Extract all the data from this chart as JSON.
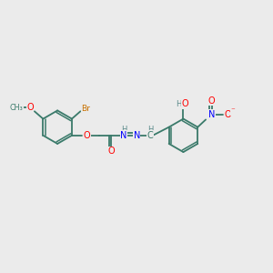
{
  "bg_color": "#ebebeb",
  "atom_colors": {
    "C": "#3a7a6a",
    "H": "#5a8a8a",
    "O": "#ff0000",
    "N": "#0000ff",
    "Br": "#c87000",
    "bond": "#3a7a6a"
  },
  "figsize": [
    3.0,
    3.0
  ],
  "dpi": 100
}
